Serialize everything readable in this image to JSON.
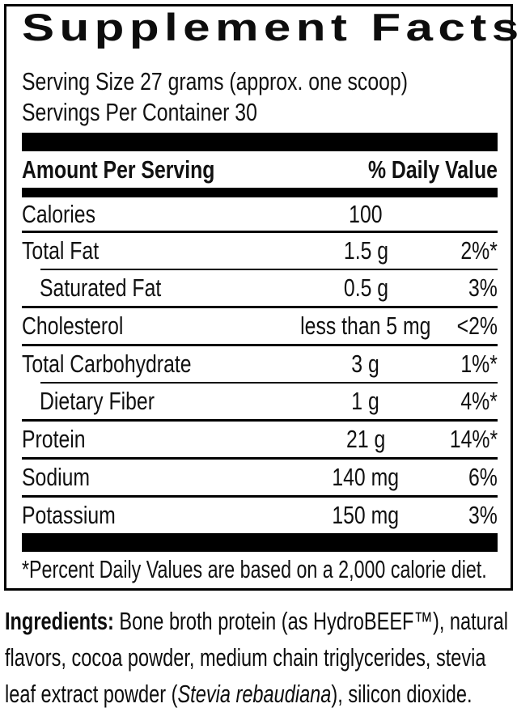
{
  "title": "Supplement Facts",
  "serving": {
    "size_line": "Serving Size 27 grams (approx. one scoop)",
    "servings_line": "Servings Per Container 30"
  },
  "table": {
    "header": {
      "left": "Amount Per Serving",
      "right": "% Daily Value"
    },
    "rows": [
      {
        "name": "Calories",
        "amount": "100",
        "dv": "",
        "indent": false
      },
      {
        "name": "Total Fat",
        "amount": "1.5 g",
        "dv": "2%*",
        "indent": false
      },
      {
        "name": "Saturated Fat",
        "amount": "0.5 g",
        "dv": "3%",
        "indent": true
      },
      {
        "name": "Cholesterol",
        "amount": "less than 5 mg",
        "dv": "<2%",
        "indent": false
      },
      {
        "name": "Total Carbohydrate",
        "amount": "3 g",
        "dv": "1%*",
        "indent": false
      },
      {
        "name": "Dietary Fiber",
        "amount": "1 g",
        "dv": "4%*",
        "indent": true
      },
      {
        "name": "Protein",
        "amount": "21 g",
        "dv": "14%*",
        "indent": false
      },
      {
        "name": "Sodium",
        "amount": "140 mg",
        "dv": "6%",
        "indent": false
      },
      {
        "name": "Potassium",
        "amount": "150 mg",
        "dv": "3%",
        "indent": false
      }
    ],
    "footnote": "*Percent Daily Values are based on a 2,000 calorie diet."
  },
  "ingredients": {
    "label": "Ingredients:",
    "line1_rest": " Bone broth protein (as HydroBEEF™), natural",
    "line2": "flavors, cocoa powder, medium chain triglycerides, stevia",
    "line3_pre": "leaf extract powder (",
    "line3_italic": "Stevia rebaudiana",
    "line3_post": "), silicon dioxide."
  },
  "colors": {
    "background": "#ffffff",
    "text": "#111111",
    "rule": "#000000"
  }
}
